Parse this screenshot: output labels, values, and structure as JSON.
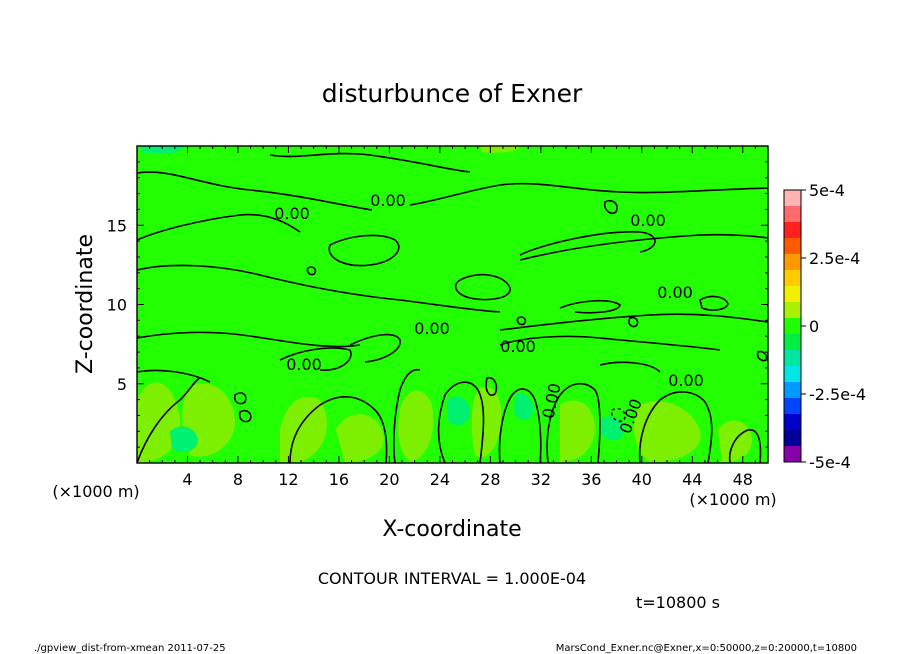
{
  "chart_data": {
    "type": "heatmap",
    "title": "disturbunce of Exner",
    "xlabel": "X-coordinate",
    "ylabel": "Z-coordinate",
    "x_unit": "(×1000 m)",
    "y_unit": "(×1000 m)",
    "xlim": [
      0,
      50
    ],
    "ylim": [
      0,
      20
    ],
    "x_ticks": [
      4,
      8,
      12,
      16,
      20,
      24,
      28,
      32,
      36,
      40,
      44,
      48
    ],
    "y_ticks": [
      5,
      10,
      15
    ],
    "contour_interval_text": "CONTOUR INTERVAL = 1.000E-04",
    "contour_labels": [
      "0.00",
      "0.00",
      "0.00",
      "0.00",
      "0.00",
      "0.00",
      "0.00",
      "0.00",
      "0.00",
      "0.00"
    ],
    "time_label": "t=10800 s",
    "footer_left": "./gpview_dist-from-xmean  2011-07-25",
    "footer_right": "MarsCond_Exner.nc@Exner,x=0:50000,z=0:20000,t=10800",
    "colorbar": {
      "min": -0.0005,
      "max": 0.0005,
      "tick_values": [
        0.0005,
        0.00025,
        0,
        -0.00025,
        -0.0005
      ],
      "tick_labels": [
        "5e-4",
        "2.5e-4",
        "0",
        "-2.5e-4",
        "-5e-4"
      ],
      "colors": [
        "#ffb3b3",
        "#ff6a6a",
        "#ff2020",
        "#ff5a00",
        "#ff9900",
        "#ffcc00",
        "#f0f000",
        "#aaf000",
        "#22ff00",
        "#00ee44",
        "#00e6a0",
        "#00e6e6",
        "#0099ff",
        "#0044ff",
        "#0000cc",
        "#000099",
        "#8800aa"
      ]
    },
    "field_colors": {
      "background": "#22ff00",
      "weak_positive": "#7cf000",
      "weak_negative": "#00f070"
    }
  }
}
